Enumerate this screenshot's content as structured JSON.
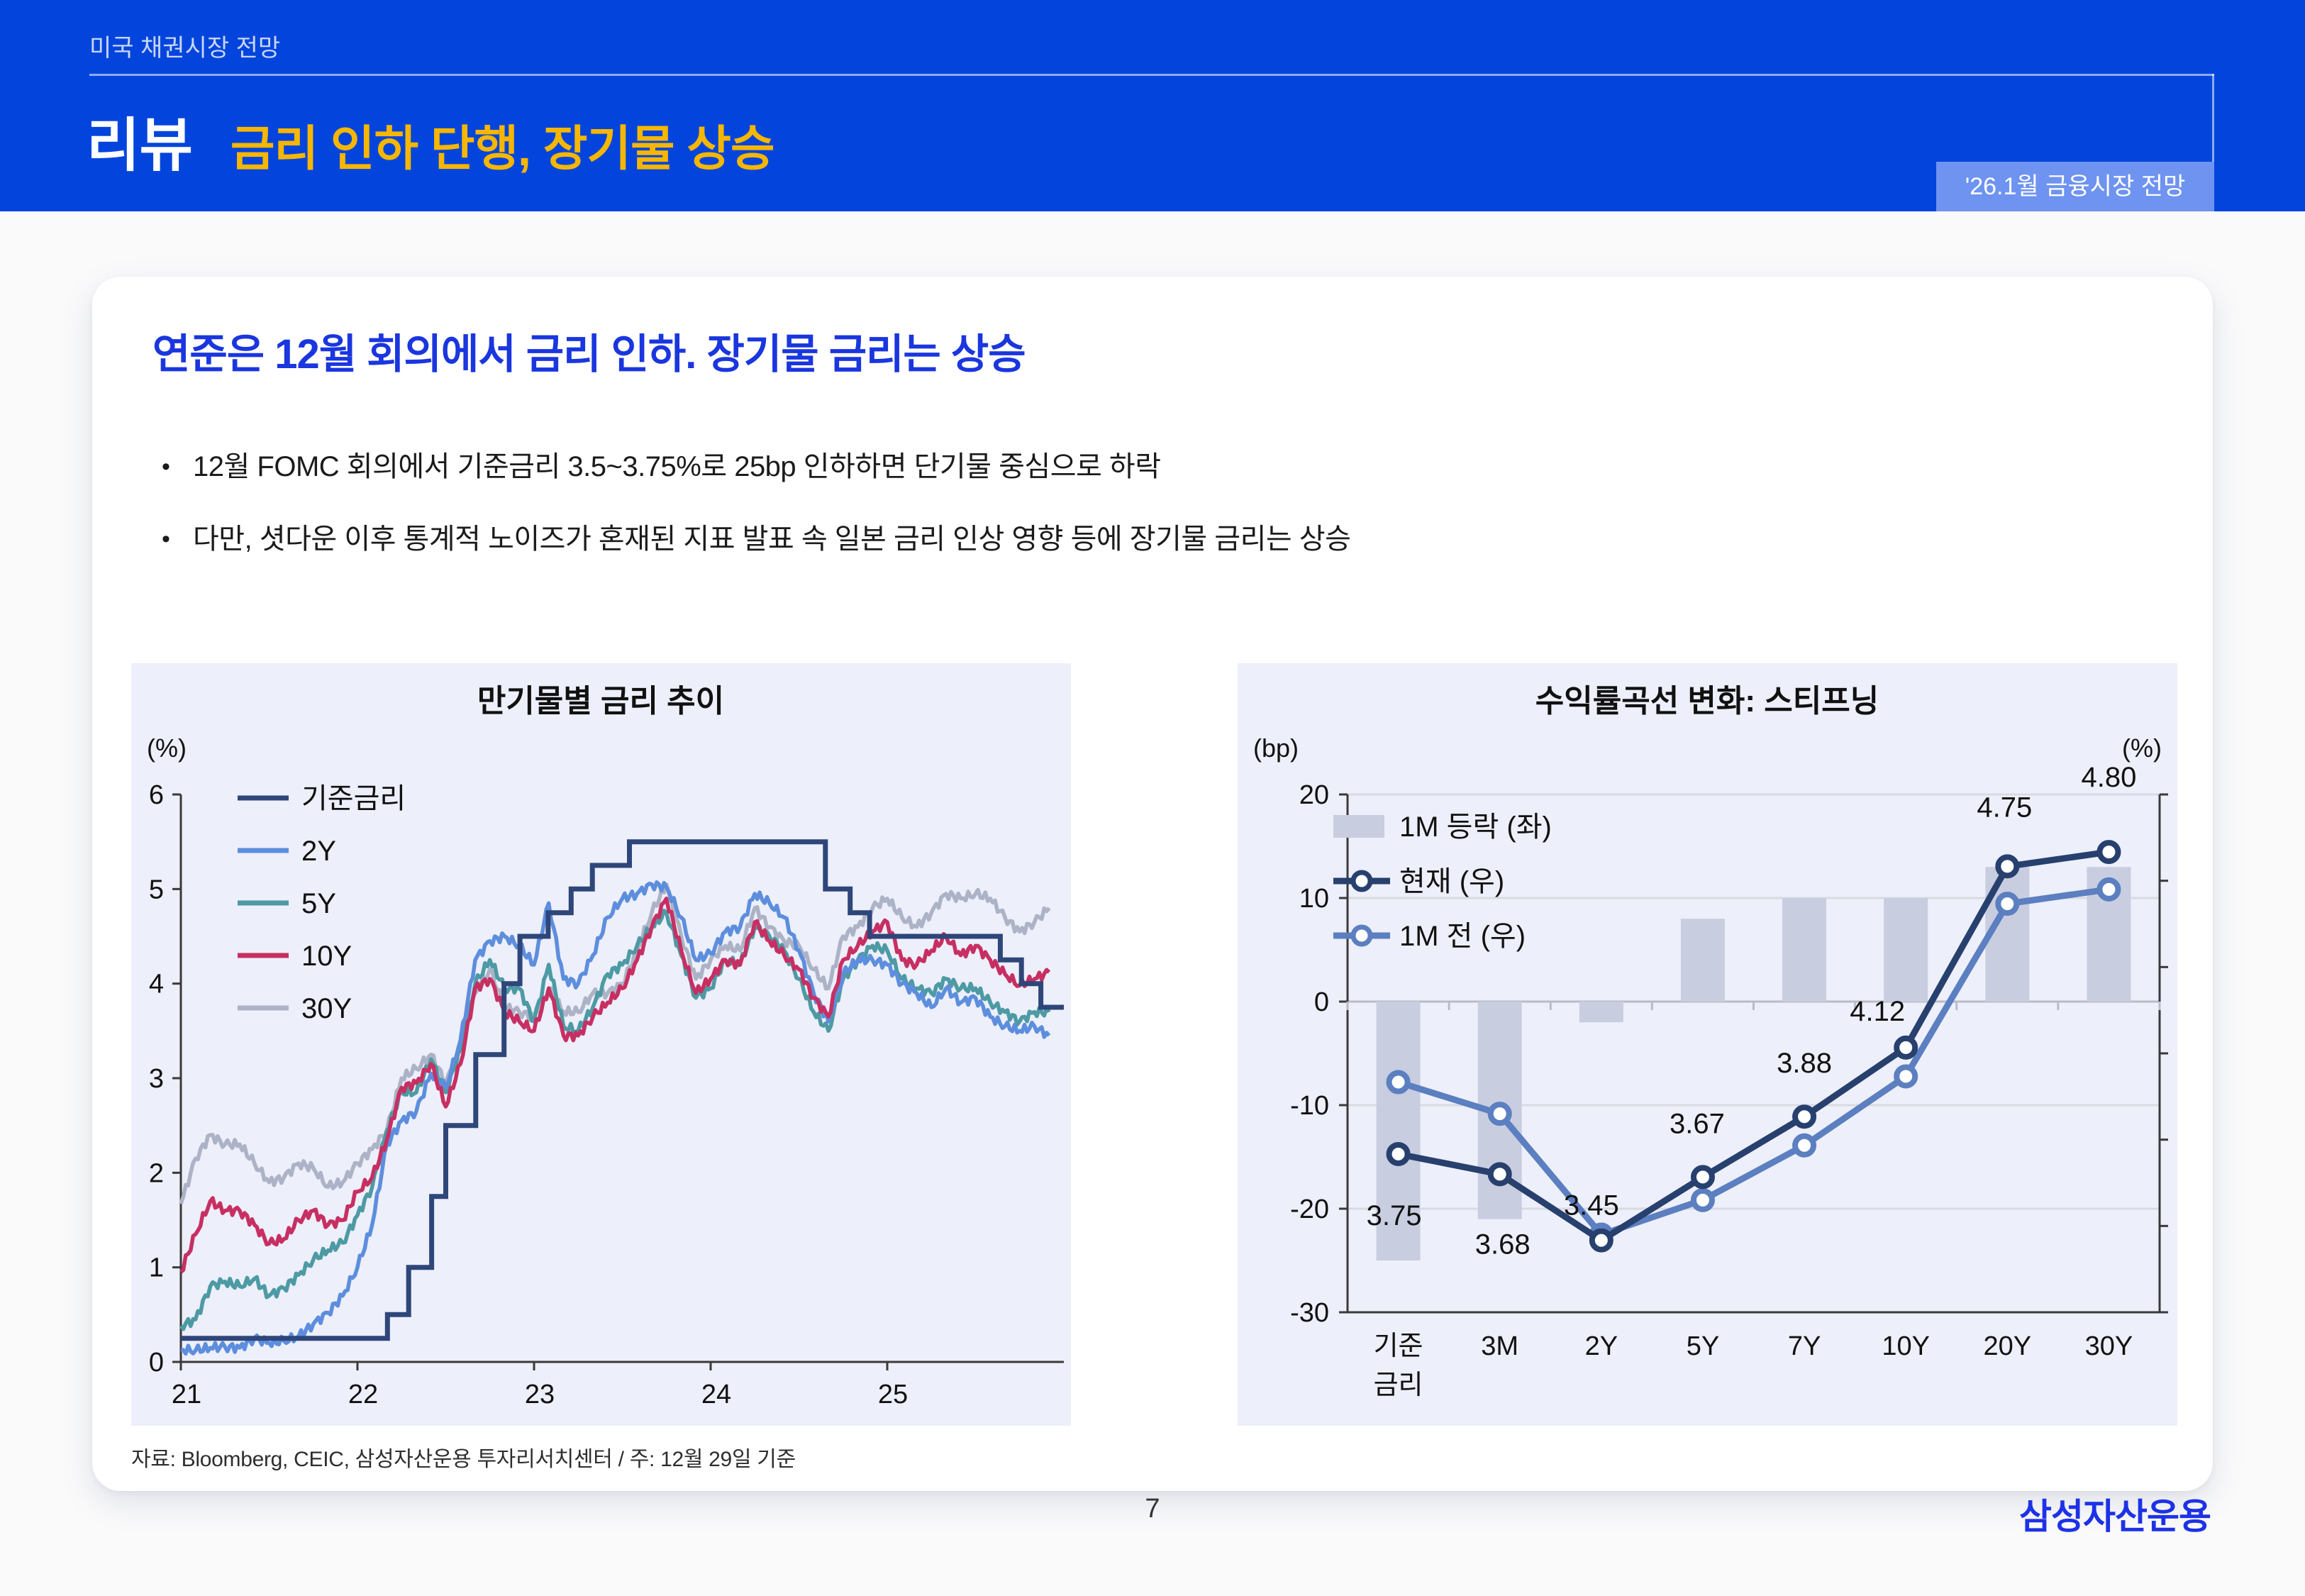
{
  "header": {
    "eyebrow": "미국 채권시장 전망",
    "title_prefix": "리뷰",
    "title": "금리 인하 단행, 장기물 상승",
    "badge": "'26.1월 금융시장 전망"
  },
  "card": {
    "title": "연준은 12월 회의에서 금리 인하. 장기물 금리는 상승",
    "bullet_marker": "•",
    "bullets": [
      "12월 FOMC 회의에서 기준금리 3.5~3.75%로 25bp 인하하면 단기물 중심으로 하락",
      "다만, 셧다운 이후 통계적 노이즈가 혼재된 지표 발표 속 일본 금리 인상 영향 등에 장기물 금리는 상승"
    ],
    "source": "자료: Bloomberg, CEIC, 삼성자산운용 투자리서치센터 / 주: 12월 29일 기준"
  },
  "footer": {
    "page_number": "7",
    "logo": "삼성자산운용"
  },
  "colors": {
    "banner_blue": "#0345dc",
    "title_yellow": "#f7b600",
    "badge_blue": "#6e93f0",
    "headline_blue": "#1a36df",
    "panel_bg": "#edeffa",
    "axis_dark": "#3a3a3a",
    "grid_light": "#d9dbe3",
    "zero_line": "#b9bcc7",
    "navy": "#27406e",
    "mid_blue": "#5b7fc0",
    "bar_gray": "#c9cde0",
    "text_dark": "#111111"
  },
  "chart_data": [
    {
      "type": "line",
      "title": "만기물별 금리 추이",
      "unit_label": "(%)",
      "xlim": [
        21,
        26
      ],
      "ylim": [
        0,
        6
      ],
      "yticks": [
        0,
        1,
        2,
        3,
        4,
        5,
        6
      ],
      "xticks": [
        21,
        22,
        23,
        24,
        25
      ],
      "grid": false,
      "legend_position": "top-left",
      "series": [
        {
          "name": "기준금리",
          "color": "#2e4679",
          "type": "step",
          "points": [
            [
              21.0,
              0.25
            ],
            [
              22.17,
              0.25
            ],
            [
              22.17,
              0.5
            ],
            [
              22.29,
              0.5
            ],
            [
              22.29,
              1.0
            ],
            [
              22.42,
              1.0
            ],
            [
              22.42,
              1.75
            ],
            [
              22.5,
              1.75
            ],
            [
              22.5,
              2.5
            ],
            [
              22.67,
              2.5
            ],
            [
              22.67,
              3.25
            ],
            [
              22.83,
              3.25
            ],
            [
              22.83,
              4.0
            ],
            [
              22.92,
              4.0
            ],
            [
              22.92,
              4.5
            ],
            [
              23.08,
              4.5
            ],
            [
              23.08,
              4.75
            ],
            [
              23.21,
              4.75
            ],
            [
              23.21,
              5.0
            ],
            [
              23.33,
              5.0
            ],
            [
              23.33,
              5.25
            ],
            [
              23.54,
              5.25
            ],
            [
              23.54,
              5.5
            ],
            [
              24.65,
              5.5
            ],
            [
              24.65,
              5.0
            ],
            [
              24.79,
              5.0
            ],
            [
              24.79,
              4.75
            ],
            [
              24.9,
              4.75
            ],
            [
              24.9,
              4.5
            ],
            [
              25.64,
              4.5
            ],
            [
              25.64,
              4.25
            ],
            [
              25.76,
              4.25
            ],
            [
              25.76,
              4.0
            ],
            [
              25.87,
              4.0
            ],
            [
              25.87,
              3.75
            ],
            [
              26.0,
              3.75
            ]
          ]
        },
        {
          "name": "2Y",
          "color": "#5d8ede",
          "type": "monthly",
          "x_start": 21,
          "dx": 0.08333,
          "values": [
            0.13,
            0.12,
            0.15,
            0.16,
            0.15,
            0.25,
            0.2,
            0.22,
            0.27,
            0.4,
            0.52,
            0.7,
            1.0,
            1.45,
            2.3,
            2.55,
            2.65,
            3.05,
            2.9,
            3.4,
            4.25,
            4.45,
            4.5,
            4.4,
            4.2,
            4.85,
            4.05,
            4.0,
            4.3,
            4.7,
            4.9,
            4.95,
            5.05,
            5.02,
            4.7,
            4.25,
            4.32,
            4.55,
            4.6,
            4.95,
            4.85,
            4.7,
            4.35,
            3.9,
            3.6,
            4.1,
            4.25,
            4.25,
            4.2,
            4.0,
            3.9,
            3.75,
            3.95,
            3.8,
            3.85,
            3.65,
            3.55,
            3.5,
            3.55,
            3.45
          ]
        },
        {
          "name": "5Y",
          "color": "#4d9aa4",
          "type": "monthly",
          "x_start": 21,
          "dx": 0.08333,
          "values": [
            0.38,
            0.45,
            0.8,
            0.85,
            0.8,
            0.88,
            0.7,
            0.78,
            0.92,
            1.08,
            1.18,
            1.26,
            1.55,
            1.85,
            2.45,
            2.85,
            2.85,
            3.2,
            2.85,
            3.3,
            4.0,
            4.25,
            3.95,
            3.95,
            3.6,
            4.2,
            3.55,
            3.5,
            3.75,
            4.1,
            4.2,
            4.4,
            4.6,
            4.75,
            4.3,
            3.85,
            3.95,
            4.25,
            4.2,
            4.6,
            4.5,
            4.35,
            4.05,
            3.7,
            3.5,
            4.05,
            4.25,
            4.4,
            4.35,
            4.05,
            3.95,
            3.9,
            4.05,
            3.95,
            3.95,
            3.8,
            3.7,
            3.6,
            3.7,
            3.7
          ]
        },
        {
          "name": "10Y",
          "color": "#c72f62",
          "type": "monthly",
          "x_start": 21,
          "dx": 0.08333,
          "values": [
            0.95,
            1.35,
            1.7,
            1.6,
            1.6,
            1.45,
            1.25,
            1.3,
            1.5,
            1.6,
            1.45,
            1.5,
            1.8,
            1.95,
            2.35,
            2.9,
            2.95,
            3.15,
            2.7,
            3.15,
            3.95,
            4.05,
            3.7,
            3.6,
            3.5,
            3.95,
            3.45,
            3.45,
            3.65,
            3.8,
            3.95,
            4.25,
            4.6,
            4.9,
            4.35,
            3.9,
            4.05,
            4.25,
            4.2,
            4.65,
            4.45,
            4.3,
            4.15,
            3.85,
            3.65,
            4.25,
            4.4,
            4.55,
            4.65,
            4.25,
            4.2,
            4.35,
            4.5,
            4.3,
            4.4,
            4.25,
            4.1,
            3.98,
            4.05,
            4.12
          ]
        },
        {
          "name": "30Y",
          "color": "#adb3c6",
          "type": "monthly",
          "x_start": 21,
          "dx": 0.08333,
          "values": [
            1.67,
            2.15,
            2.4,
            2.3,
            2.3,
            2.1,
            1.9,
            1.95,
            2.1,
            2.05,
            1.85,
            1.9,
            2.1,
            2.25,
            2.45,
            3.0,
            3.1,
            3.25,
            2.95,
            3.3,
            3.9,
            4.15,
            3.75,
            3.7,
            3.65,
            3.95,
            3.7,
            3.7,
            3.9,
            3.9,
            4.0,
            4.35,
            4.75,
            5.05,
            4.5,
            4.05,
            4.25,
            4.4,
            4.35,
            4.8,
            4.6,
            4.45,
            4.4,
            4.15,
            3.95,
            4.5,
            4.6,
            4.8,
            4.9,
            4.7,
            4.6,
            4.75,
            4.95,
            4.9,
            4.95,
            4.9,
            4.7,
            4.55,
            4.65,
            4.8
          ]
        }
      ]
    },
    {
      "type": "bar+line",
      "title": "수익률곡선 변화: 스티프닝",
      "left_unit": "(bp)",
      "right_unit": "(%)",
      "categories": [
        "기준금리",
        "3M",
        "2Y",
        "5Y",
        "7Y",
        "10Y",
        "20Y",
        "30Y"
      ],
      "category_label_lines": [
        [
          "기준",
          "금리"
        ],
        [
          "3M"
        ],
        [
          "2Y"
        ],
        [
          "5Y"
        ],
        [
          "7Y"
        ],
        [
          "10Y"
        ],
        [
          "20Y"
        ],
        [
          "30Y"
        ]
      ],
      "left_ylim": [
        -30,
        20
      ],
      "left_yticks": [
        20,
        10,
        0,
        -10,
        -20,
        -30
      ],
      "right_ylim": [
        3.2,
        5.0
      ],
      "right_yticks": [
        "5.0",
        "4.7",
        "4.4",
        "4.1",
        "3.8",
        "3.5",
        "3.2"
      ],
      "bars": {
        "name": "1M 등락 (좌)",
        "color": "#c9cde0",
        "axis": "left",
        "values": [
          -25,
          -21,
          -2,
          8,
          10,
          10,
          13,
          13
        ]
      },
      "lines": [
        {
          "name": "현재 (우)",
          "color": "#27406e",
          "axis": "right",
          "values": [
            3.75,
            3.68,
            3.45,
            3.67,
            3.88,
            4.12,
            4.75,
            4.8
          ]
        },
        {
          "name": "1M 전 (우)",
          "color": "#5b7fc0",
          "axis": "right",
          "values": [
            4.0,
            3.89,
            3.47,
            3.59,
            3.78,
            4.02,
            4.62,
            4.67
          ]
        }
      ],
      "point_labels": [
        "3.75",
        "3.68",
        "3.45",
        "3.67",
        "3.88",
        "4.12",
        "4.75",
        "4.80"
      ],
      "legend_position": "top-left"
    }
  ]
}
